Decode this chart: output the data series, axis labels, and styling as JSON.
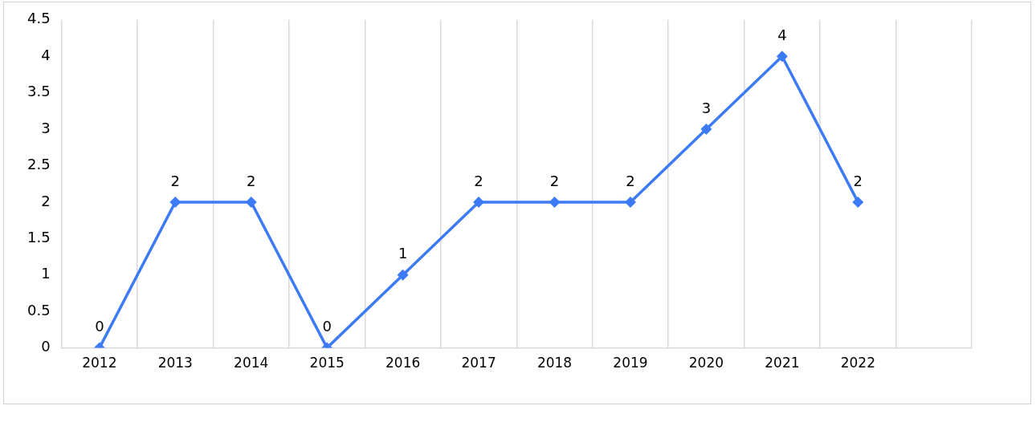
{
  "chart_data": {
    "type": "line",
    "categories": [
      "2012",
      "2013",
      "2014",
      "2015",
      "2016",
      "2017",
      "2018",
      "2019",
      "2020",
      "2021",
      "2022",
      null
    ],
    "series": [
      {
        "color": "#3d7af5",
        "values": [
          0,
          2,
          2,
          0,
          1,
          2,
          2,
          2,
          3,
          4,
          2,
          null
        ]
      }
    ],
    "ylim": [
      0,
      4.5
    ],
    "yticks": [
      0,
      0.5,
      1,
      1.5,
      2,
      2.5,
      3,
      3.5,
      4,
      4.5
    ],
    "grid": "x",
    "marker": "diamond",
    "line_style": "solid",
    "data_labels": true,
    "legend": false
  }
}
